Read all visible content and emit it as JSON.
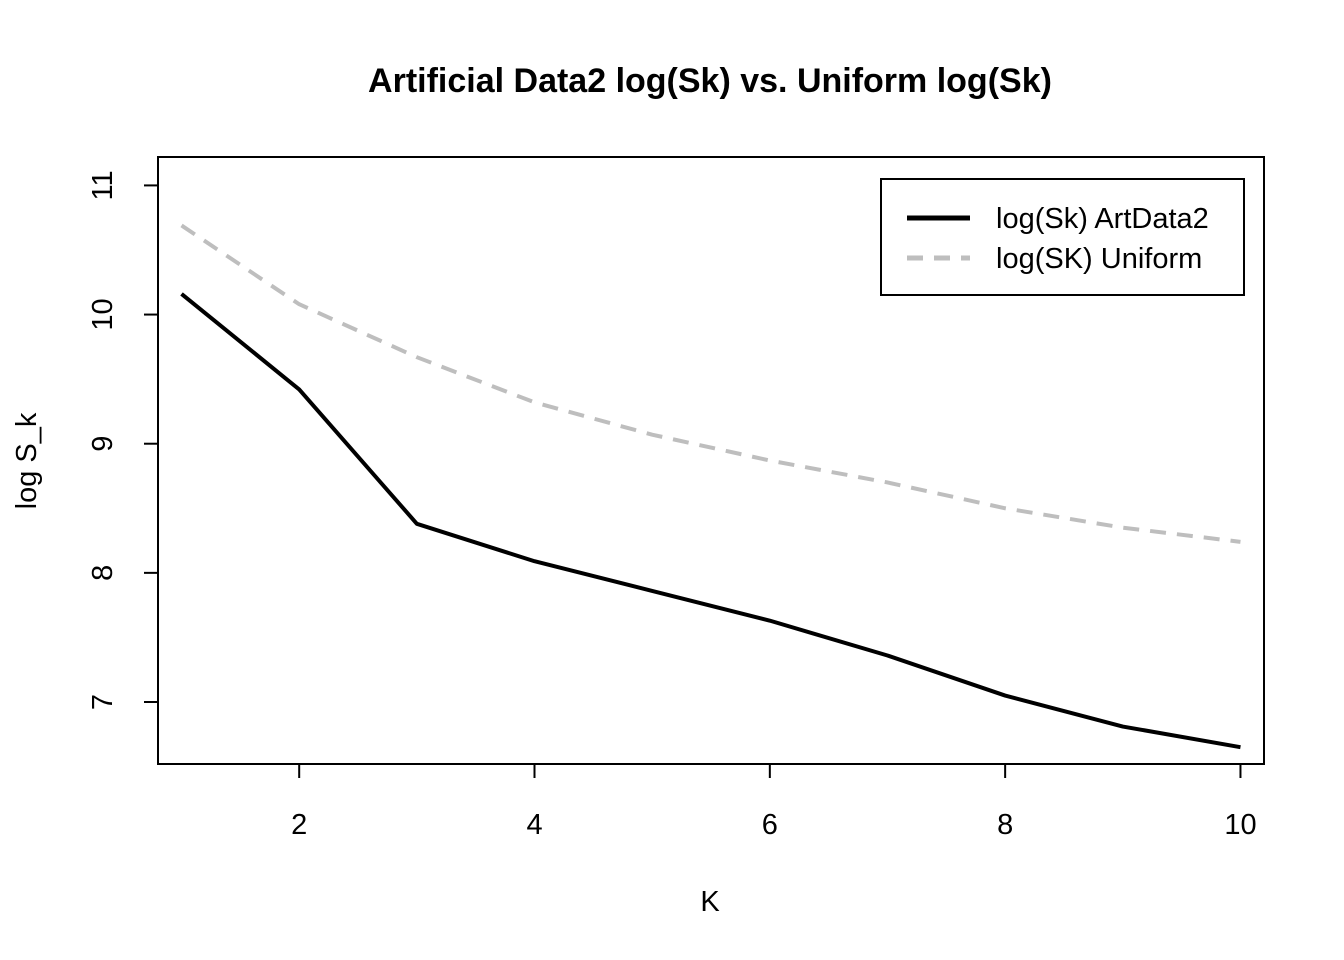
{
  "chart_data": {
    "type": "line",
    "title": "Artificial Data2 log(Sk) vs. Uniform log(Sk)",
    "xlabel": "K",
    "ylabel": "log S_k",
    "x": [
      1,
      2,
      3,
      4,
      5,
      6,
      7,
      8,
      9,
      10
    ],
    "xlim": [
      0.8,
      10.2
    ],
    "ylim": [
      6.52,
      11.22
    ],
    "xticks": [
      2,
      4,
      6,
      8,
      10
    ],
    "yticks": [
      7,
      8,
      9,
      10,
      11
    ],
    "grid": false,
    "legend_position": "top-right",
    "series": [
      {
        "name": "log(Sk) ArtData2",
        "values": [
          10.16,
          9.42,
          8.38,
          8.09,
          7.86,
          7.63,
          7.36,
          7.05,
          6.81,
          6.65
        ],
        "color": "#000000",
        "style": "solid"
      },
      {
        "name": "log(SK) Uniform",
        "values": [
          10.69,
          10.08,
          9.67,
          9.32,
          9.07,
          8.87,
          8.7,
          8.5,
          8.35,
          8.24
        ],
        "color": "#bebebe",
        "style": "dashed"
      }
    ]
  }
}
